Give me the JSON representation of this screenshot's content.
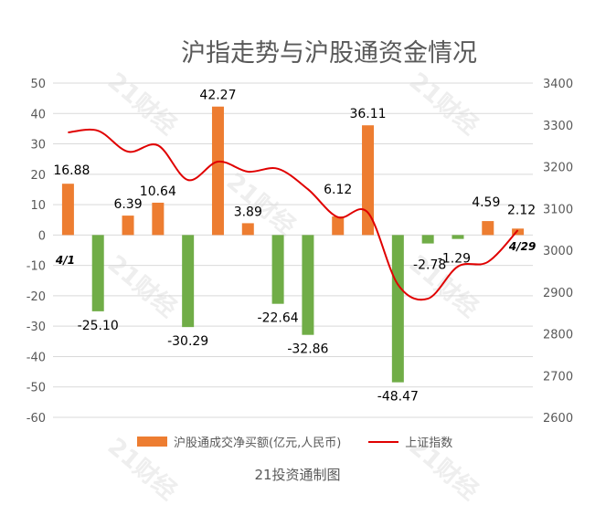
{
  "title": "沪指走势与沪股通资金情况",
  "footer": "21投资通制图",
  "watermark": "21财经",
  "colors": {
    "positive": "#ED7D31",
    "negative": "#70AD47",
    "line": "#E00000",
    "grid": "#D9D9D9",
    "text": "#595959"
  },
  "chart_data": {
    "type": "bar+line",
    "title": "沪指走势与沪股通资金情况",
    "categories": [
      "4/1",
      "",
      "",
      "",
      "",
      "",
      "",
      "",
      "",
      "",
      "",
      "",
      "",
      "",
      "",
      "4/29"
    ],
    "start_label": "4/1",
    "end_label": "4/29",
    "series": [
      {
        "name": "沪股通成交净买额(亿元,人民币)",
        "type": "bar",
        "axis": "left",
        "values": [
          16.88,
          -25.1,
          6.39,
          10.64,
          -30.29,
          42.27,
          3.89,
          -22.64,
          -32.86,
          6.12,
          36.11,
          -48.47,
          -2.78,
          -1.29,
          4.59,
          2.12
        ],
        "labels": [
          "16.88",
          "-25.10",
          "6.39",
          "10.64",
          "-30.29",
          "42.27",
          "3.89",
          "-22.64",
          "-32.86",
          "6.12",
          "36.11",
          "-48.47",
          "-2.78",
          "-1.29",
          "4.59",
          "2.12"
        ]
      },
      {
        "name": "上证指数",
        "type": "line",
        "axis": "right",
        "values": [
          3282,
          3286,
          3236,
          3251,
          3168,
          3212,
          3188,
          3195,
          3146,
          3079,
          3090,
          2918,
          2884,
          2961,
          2972,
          3048
        ]
      }
    ],
    "left_axis": {
      "ylim": [
        -60,
        50
      ],
      "ticks": [
        "50",
        "40",
        "30",
        "20",
        "10",
        "0",
        "-10",
        "-20",
        "-30",
        "-40",
        "-50",
        "-60"
      ]
    },
    "right_axis": {
      "ylim": [
        2600,
        3400
      ],
      "ticks": [
        "3400",
        "3300",
        "3200",
        "3100",
        "3000",
        "2900",
        "2800",
        "2700",
        "2600"
      ]
    },
    "grid": true,
    "legend_position": "bottom"
  }
}
